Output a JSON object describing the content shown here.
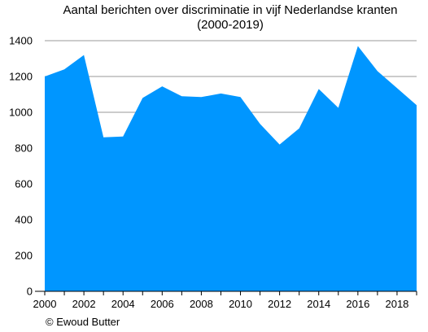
{
  "chart_data": {
    "type": "area",
    "title_lines": [
      "Aantal berichten over discriminatie in vijf Nederlandse kranten",
      "(2000-2019)"
    ],
    "xlabel": "",
    "ylabel": "",
    "x": [
      2000,
      2001,
      2002,
      2003,
      2004,
      2005,
      2006,
      2007,
      2008,
      2009,
      2010,
      2011,
      2012,
      2013,
      2014,
      2015,
      2016,
      2017,
      2018,
      2019
    ],
    "values": [
      1200,
      1240,
      1320,
      860,
      865,
      1080,
      1145,
      1090,
      1085,
      1105,
      1085,
      935,
      820,
      910,
      1130,
      1025,
      1370,
      1230,
      1135,
      1040
    ],
    "xlim": [
      2000,
      2019
    ],
    "ylim": [
      0,
      1400
    ],
    "x_ticks": [
      "2000",
      "2002",
      "2004",
      "2006",
      "2008",
      "2010",
      "2012",
      "2014",
      "2016",
      "2018"
    ],
    "y_ticks": [
      "0",
      "200",
      "400",
      "600",
      "800",
      "1000",
      "1200",
      "1400"
    ],
    "grid": "horizontal",
    "fill_color": "#0096ff",
    "credit": "© Ewoud Butter"
  }
}
